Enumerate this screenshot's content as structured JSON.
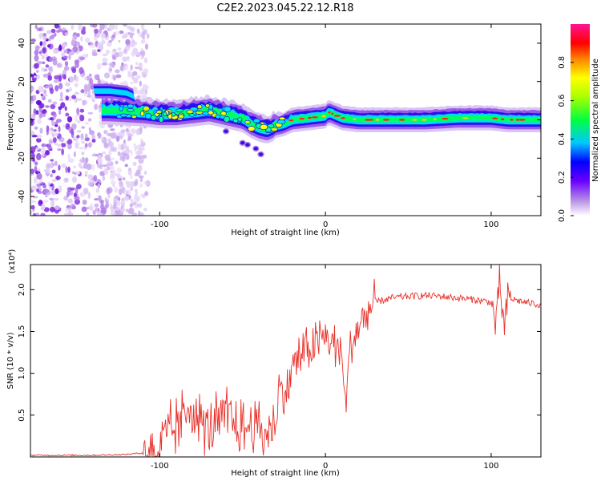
{
  "title": "C2E2.2023.045.22.12.R18",
  "colors": {
    "snr_line": "#e8312a",
    "colorbar": [
      "#ffffff",
      "#8a2be2",
      "#0000ff",
      "#00ffff",
      "#00ff00",
      "#ffff00",
      "#ff8000",
      "#ff0000",
      "#ff00ff",
      "#ff1080"
    ]
  },
  "chart_data": [
    {
      "type": "heatmap",
      "name": "spectrogram",
      "xlabel": "Height of straight line (km)",
      "ylabel": "Frequency (Hz)",
      "xlim": [
        -178,
        130
      ],
      "ylim": [
        -50,
        50
      ],
      "xticks": [
        -100,
        0,
        100
      ],
      "xtick_labels": [
        "-100",
        "0",
        "100"
      ],
      "yticks": [
        -40,
        -20,
        0,
        20,
        40
      ],
      "ytick_labels": [
        "-40",
        "-20",
        "0",
        "20",
        "40"
      ],
      "colorbar": {
        "label": "Normalized spectral amplitude",
        "range": [
          0,
          1
        ],
        "ticks": [
          0.0,
          0.2,
          0.4,
          0.6,
          0.8
        ],
        "tick_labels": [
          "0.0",
          "0.2",
          "0.4",
          "0.6",
          "0.8"
        ]
      },
      "ridge": {
        "x": [
          -130,
          -110,
          -100,
          -90,
          -80,
          -70,
          -60,
          -50,
          -45,
          -40,
          -35,
          -30,
          -25,
          -20,
          -10,
          0,
          2,
          10,
          20,
          40,
          60,
          80,
          100,
          110,
          120,
          130
        ],
        "y": [
          5,
          4,
          3,
          3,
          4,
          5,
          3,
          1,
          -2,
          -4,
          -5,
          -3,
          -2,
          0,
          1,
          2,
          4,
          1,
          0,
          0,
          0,
          1,
          1,
          0,
          0,
          0
        ]
      },
      "upper_branch": {
        "x": [
          -140,
          -130,
          -120,
          -115
        ],
        "y": [
          15,
          15,
          14,
          12
        ]
      },
      "noise_region_x": [
        -178,
        -115
      ]
    },
    {
      "type": "line",
      "name": "snr",
      "xlabel": "Height of straight line (km)",
      "ylabel": "SNR (10 * v/v)",
      "y_scale_label": "(x10⁴)",
      "xlim": [
        -178,
        130
      ],
      "ylim": [
        0,
        2.3
      ],
      "xticks": [
        -100,
        0,
        100
      ],
      "xtick_labels": [
        "-100",
        "0",
        "100"
      ],
      "yticks": [
        0.5,
        1.0,
        1.5,
        2.0
      ],
      "ytick_labels": [
        "0.5",
        "1.0",
        "1.5",
        "2.0"
      ],
      "series": [
        {
          "name": "SNR",
          "x": [
            -178,
            -160,
            -140,
            -120,
            -110,
            -100,
            -95,
            -90,
            -85,
            -82,
            -80,
            -75,
            -70,
            -65,
            -60,
            -55,
            -50,
            -45,
            -40,
            -35,
            -30,
            -28,
            -25,
            -22,
            -20,
            -15,
            -10,
            -5,
            0,
            5,
            10,
            12,
            15,
            20,
            25,
            30,
            40,
            50,
            60,
            70,
            80,
            90,
            100,
            103,
            105,
            108,
            110,
            120,
            130
          ],
          "y": [
            0.02,
            0.02,
            0.02,
            0.03,
            0.05,
            0.12,
            0.25,
            0.35,
            0.45,
            0.7,
            0.55,
            0.4,
            0.35,
            0.4,
            0.5,
            0.4,
            0.3,
            0.4,
            0.35,
            0.25,
            0.45,
            0.8,
            0.75,
            0.85,
            1.1,
            1.2,
            1.3,
            1.35,
            1.45,
            1.35,
            1.25,
            0.6,
            1.3,
            1.55,
            1.7,
            1.85,
            1.9,
            1.92,
            1.93,
            1.92,
            1.9,
            1.88,
            1.85,
            1.55,
            2.1,
            1.5,
            1.9,
            1.85,
            1.82
          ]
        }
      ]
    }
  ]
}
